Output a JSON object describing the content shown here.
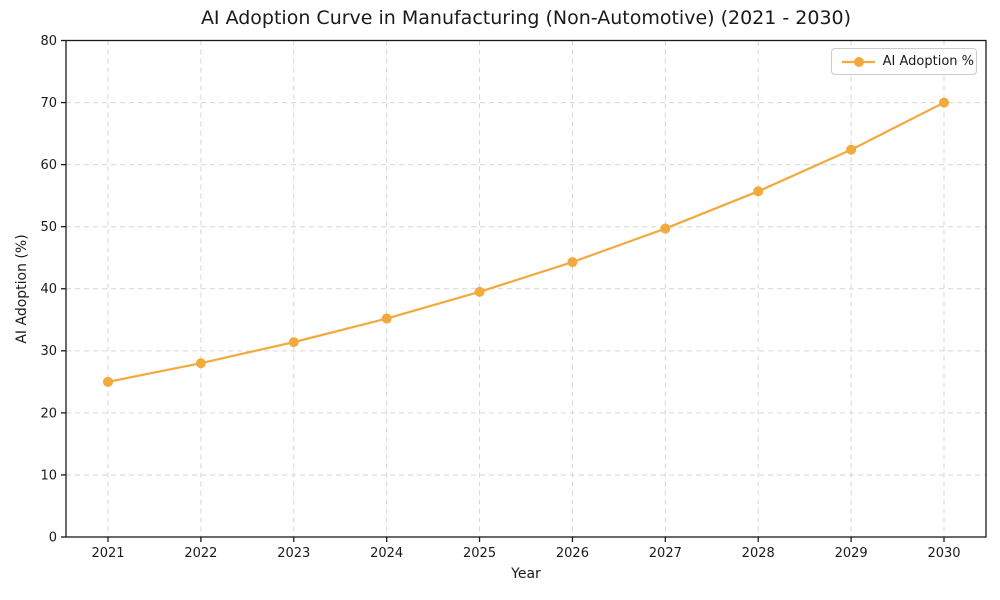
{
  "chart_data": {
    "type": "line",
    "title": "AI Adoption Curve in Manufacturing (Non-Automotive) (2021 - 2030)",
    "xlabel": "Year",
    "ylabel": "AI Adoption (%)",
    "categories": [
      "2021",
      "2022",
      "2023",
      "2024",
      "2025",
      "2026",
      "2027",
      "2028",
      "2029",
      "2030"
    ],
    "series": [
      {
        "name": "AI Adoption %",
        "values": [
          25.0,
          28.0,
          31.4,
          35.2,
          39.5,
          44.3,
          49.7,
          55.7,
          62.4,
          70.0
        ],
        "color": "#F2A93E",
        "marker": "circle"
      }
    ],
    "ylim": [
      0,
      80
    ],
    "yticks": [
      0,
      10,
      20,
      30,
      40,
      50,
      60,
      70,
      80
    ],
    "grid": true,
    "grid_style": "dashed",
    "legend_position": "upper right",
    "colors": {
      "line": "#F2A93E",
      "grid": "#d6d6d6",
      "spine": "#1a1a1a",
      "text": "#1a1a1a",
      "background": "#ffffff"
    }
  }
}
